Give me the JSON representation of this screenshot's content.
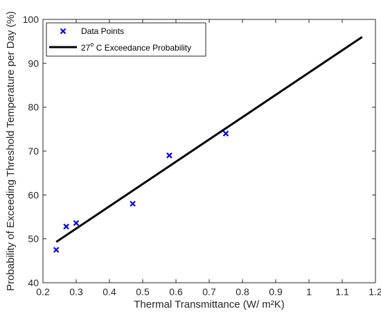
{
  "chart_data": {
    "type": "scatter",
    "xlabel": "Thermal Transmittance (W/ m²K)",
    "ylabel": "Probability of Exceeding Threshold Temperature per Day (%)",
    "xlim": [
      0.2,
      1.2
    ],
    "ylim": [
      40,
      100
    ],
    "x_ticks": [
      "0.2",
      "0.3",
      "0.4",
      "0.5",
      "0.6",
      "0.7",
      "0.8",
      "0.9",
      "1",
      "1.1",
      "1.2"
    ],
    "y_ticks": [
      "40",
      "50",
      "60",
      "70",
      "80",
      "90",
      "100"
    ],
    "grid": false,
    "legend_position": "top-left",
    "series": [
      {
        "name": "Data Points",
        "kind": "scatter",
        "marker": "x",
        "color": "#0000ff",
        "x": [
          0.24,
          0.27,
          0.3,
          0.47,
          0.58,
          0.75
        ],
        "y": [
          47.5,
          52.8,
          53.6,
          58.0,
          69.0,
          74.0
        ]
      },
      {
        "name_base": "27",
        "name_sup": "o",
        "name_rest": " C Exceedance Probability",
        "kind": "line",
        "color": "#000000",
        "x": [
          0.24,
          1.16
        ],
        "y": [
          49.3,
          96.0
        ]
      }
    ]
  }
}
